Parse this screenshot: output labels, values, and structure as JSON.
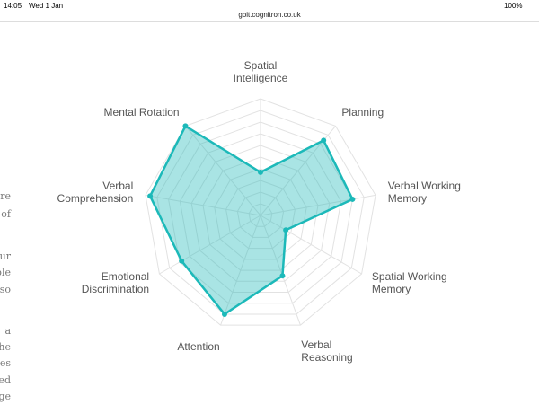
{
  "status_bar": {
    "time": "14:05",
    "date": "Wed 1 Jan",
    "url": "gbit.cognitron.co.uk",
    "battery": "100%"
  },
  "left_text": [
    "re",
    "of",
    "ur",
    "ble",
    "so",
    "a",
    "he",
    "es",
    "ed",
    "ge"
  ],
  "chart_data": {
    "type": "radar",
    "categories": [
      "Spatial Intelligence",
      "Planning",
      "Verbal Working Memory",
      "Spatial Working Memory",
      "Verbal Reasoning",
      "Attention",
      "Emotional Discrimination",
      "Verbal Comprehension",
      "Mental Rotation"
    ],
    "values": [
      37,
      84,
      80,
      25,
      55,
      90,
      78,
      96,
      100
    ],
    "color": "#1cb9b9",
    "rlim": [
      0,
      100
    ],
    "rticks": [
      10,
      20,
      30,
      40,
      50,
      60,
      70,
      80,
      90,
      100
    ],
    "grid": true
  }
}
